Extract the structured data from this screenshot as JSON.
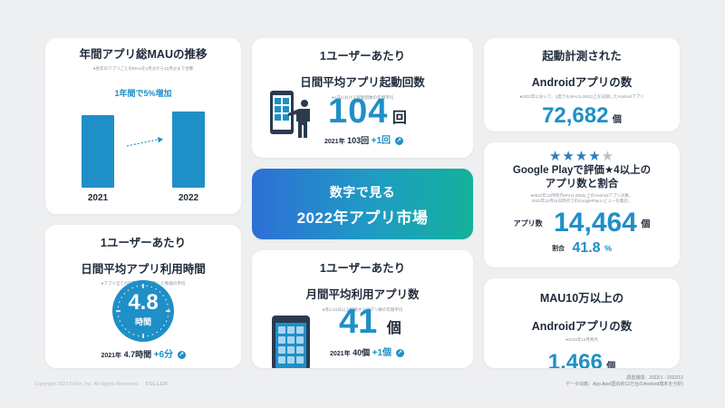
{
  "card_mau": {
    "title": "年間アプリ総MAUの推移",
    "note": "●各年のアプリごとのMAUを1月分から12月分まで合算",
    "annotation": "1年間で5%増加"
  },
  "chart_data": {
    "type": "bar",
    "categories": [
      "2021",
      "2022"
    ],
    "values": [
      100,
      105
    ],
    "ylim": [
      0,
      125
    ],
    "title": "年間アプリ総MAUの推移",
    "annotation": "1年間で5%増加",
    "bar_color": "#1f8fc7"
  },
  "card_daily_launch": {
    "title_line1": "1ユーザーあたり",
    "title_line2": "日間平均アプリ起動回数",
    "note": "●1日における起動回数の年間平均",
    "value": "104",
    "unit": "回",
    "prev_label": "2021年",
    "prev_value": "103",
    "prev_unit": "回",
    "delta": "+1回",
    "icon": "person-with-phone-icon"
  },
  "card_center": {
    "line1": "数字で見る",
    "line2": "2022年アプリ市場",
    "gradient_from": "#2d6fd6",
    "gradient_to": "#14b19a"
  },
  "card_monthly_apps": {
    "title_line1": "1ユーザーあたり",
    "title_line2": "月間平均利用アプリ数",
    "note": "●月に10日以上起動するアプリ数の年間平均",
    "value": "41",
    "unit": "個",
    "prev_label": "2021年",
    "prev_value": "40",
    "prev_unit": "個",
    "delta": "+1個",
    "icon": "phone-app-grid-icon"
  },
  "card_daily_time": {
    "title_line1": "1ユーザーあたり",
    "title_line2": "日間平均アプリ利用時間",
    "note": "●アプリ全ての利用時間を合算した数値の平均",
    "value": "4.8",
    "unit": "時間",
    "prev_label": "2021年",
    "prev_value": "4.7",
    "prev_unit": "時間",
    "delta": "+6分",
    "icon": "clock-icon"
  },
  "card_android_count": {
    "title_line1": "起動計測された",
    "title_line2": "Androidアプリの数",
    "note": "●2022年において、1度でもMAU1,000以上を記録したAndroidアプリ",
    "value": "72,682",
    "unit": "個"
  },
  "card_rating": {
    "stars_filled": 4,
    "stars_total": 5,
    "title_line1": "Google Playで評価★4以上の",
    "title_line2": "アプリ数と割合",
    "note_line1": "●2022年12月時点MAU1,000以上のAndroidアプリ対象。",
    "note_line2": "2022年12月31日時点でのGooglePlayレビューを集計。",
    "count_label": "アプリ数",
    "count_value": "14,464",
    "count_unit": "個",
    "ratio_label": "割合",
    "ratio_value": "41.8",
    "ratio_unit": "%"
  },
  "card_mau100k": {
    "title_line1": "MAU10万以上の",
    "title_line2": "Androidアプリの数",
    "note": "●2022年12月時点",
    "value": "1,466",
    "unit": "個"
  },
  "footer": {
    "copyright": "Copyright 2023 Fuller, Inc. All Rights Reserved.",
    "logo_text": "FULLER",
    "period": "調査期間：2022/1 - 2022/12",
    "source": "データ出典：App Ape(国内約12万台のAndroid端末を分析)"
  },
  "colors": {
    "accent": "#1f8fc7",
    "text": "#1f2a3a",
    "background": "#eeeff1"
  }
}
